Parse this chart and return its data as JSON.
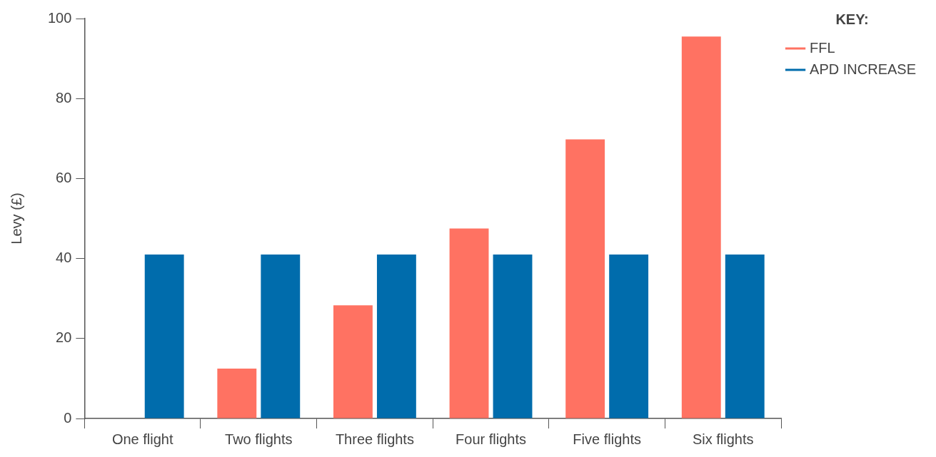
{
  "chart_data": {
    "type": "bar",
    "ylabel": "Levy (£)",
    "legend_title": "KEY:",
    "categories": [
      "One flight",
      "Two flights",
      "Three flights",
      "Four flights",
      "Five flights",
      "Six flights"
    ],
    "series": [
      {
        "name": "FFL",
        "color": "#ff7262",
        "values": [
          0,
          12.5,
          28.3,
          47.5,
          69.8,
          95.5
        ]
      },
      {
        "name": "APD INCREASE",
        "color": "#006cac",
        "values": [
          41,
          41,
          41,
          41,
          41,
          41
        ]
      }
    ],
    "ylim": [
      0,
      100
    ],
    "yticks": [
      0,
      20,
      40,
      60,
      80,
      100
    ],
    "grid": false,
    "legend": "top right"
  }
}
